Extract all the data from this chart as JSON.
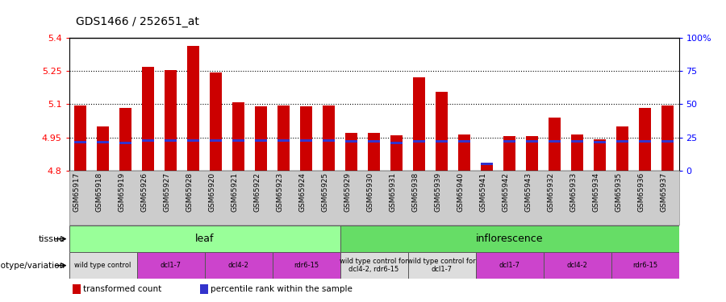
{
  "title": "GDS1466 / 252651_at",
  "samples": [
    "GSM65917",
    "GSM65918",
    "GSM65919",
    "GSM65926",
    "GSM65927",
    "GSM65928",
    "GSM65920",
    "GSM65921",
    "GSM65922",
    "GSM65923",
    "GSM65924",
    "GSM65925",
    "GSM65929",
    "GSM65930",
    "GSM65931",
    "GSM65938",
    "GSM65939",
    "GSM65940",
    "GSM65941",
    "GSM65942",
    "GSM65943",
    "GSM65932",
    "GSM65933",
    "GSM65934",
    "GSM65935",
    "GSM65936",
    "GSM65937"
  ],
  "transformed_count": [
    5.095,
    5.0,
    5.085,
    5.27,
    5.255,
    5.365,
    5.245,
    5.11,
    5.09,
    5.095,
    5.09,
    5.095,
    4.97,
    4.97,
    4.96,
    5.22,
    5.155,
    4.965,
    4.835,
    4.955,
    4.955,
    5.04,
    4.965,
    4.94,
    5.0,
    5.085,
    5.095
  ],
  "blue_y_data": [
    4.928,
    4.928,
    4.925,
    4.937,
    4.937,
    4.937,
    4.937,
    4.937,
    4.937,
    4.937,
    4.937,
    4.937,
    4.932,
    4.932,
    4.925,
    4.932,
    4.932,
    4.932,
    4.829,
    4.932,
    4.932,
    4.932,
    4.932,
    4.928,
    4.932,
    4.932,
    4.932
  ],
  "ymin": 4.8,
  "ymax": 5.4,
  "yticks": [
    4.8,
    4.95,
    5.1,
    5.25,
    5.4
  ],
  "ytick_labels": [
    "4.8",
    "4.95",
    "5.1",
    "5.25",
    "5.4"
  ],
  "right_yticks": [
    0,
    0.25,
    0.5,
    0.75,
    1.0
  ],
  "right_ytick_labels": [
    "0",
    "25",
    "50",
    "75",
    "100%"
  ],
  "bar_color": "#cc0000",
  "blue_color": "#3333cc",
  "bg_color": "#ffffff",
  "plot_bg": "#f0f0f0",
  "tissue_leaf_range": [
    0,
    12
  ],
  "tissue_inflor_range": [
    12,
    27
  ],
  "tissue_leaf_label": "leaf",
  "tissue_inflor_label": "inflorescence",
  "tissue_leaf_color": "#99ff99",
  "tissue_inflor_color": "#66dd66",
  "genotype_groups": [
    {
      "label": "wild type control",
      "start": 0,
      "end": 3,
      "color": "#dddddd"
    },
    {
      "label": "dcl1-7",
      "start": 3,
      "end": 6,
      "color": "#cc44cc"
    },
    {
      "label": "dcl4-2",
      "start": 6,
      "end": 9,
      "color": "#cc44cc"
    },
    {
      "label": "rdr6-15",
      "start": 9,
      "end": 12,
      "color": "#cc44cc"
    },
    {
      "label": "wild type control for\ndcl4-2, rdr6-15",
      "start": 12,
      "end": 15,
      "color": "#dddddd"
    },
    {
      "label": "wild type control for\ndcl1-7",
      "start": 15,
      "end": 18,
      "color": "#dddddd"
    },
    {
      "label": "dcl1-7",
      "start": 18,
      "end": 21,
      "color": "#cc44cc"
    },
    {
      "label": "dcl4-2",
      "start": 21,
      "end": 24,
      "color": "#cc44cc"
    },
    {
      "label": "rdr6-15",
      "start": 24,
      "end": 27,
      "color": "#cc44cc"
    }
  ],
  "legend_items": [
    {
      "label": "transformed count",
      "color": "#cc0000"
    },
    {
      "label": "percentile rank within the sample",
      "color": "#3333cc"
    }
  ],
  "label_bg_color": "#cccccc",
  "label_border_color": "#888888"
}
